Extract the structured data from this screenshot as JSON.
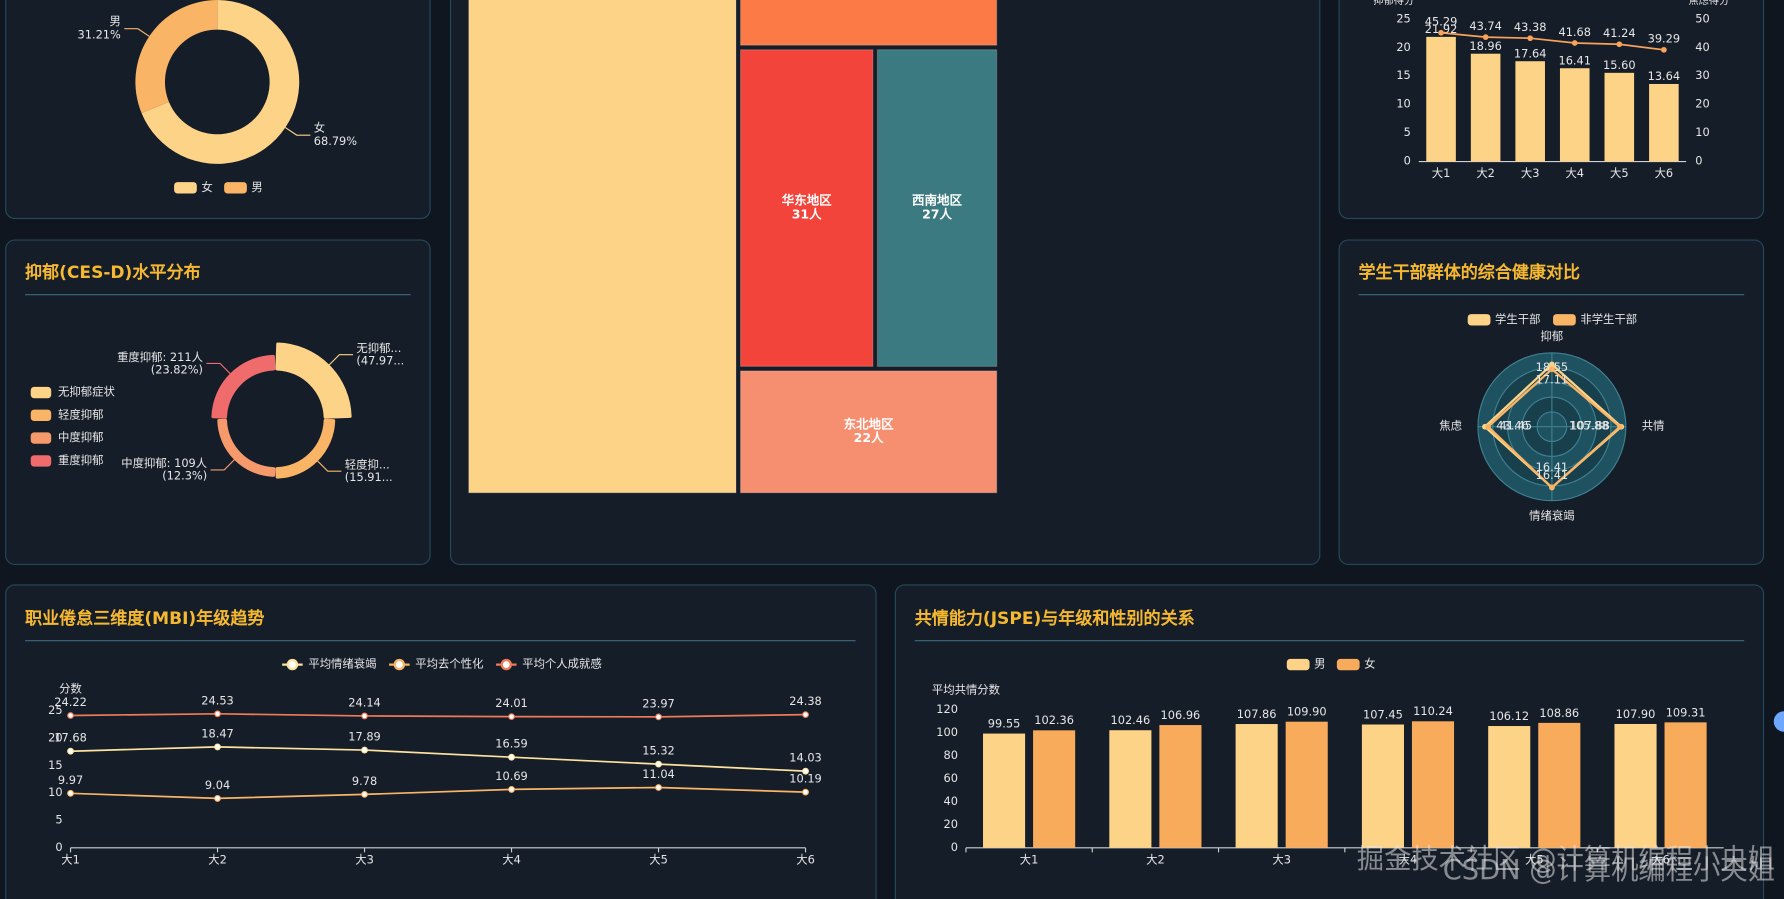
{
  "chart_data": [
    {
      "type": "pie",
      "categories": [
        "女",
        "男"
      ],
      "values": [
        68.79,
        31.21
      ],
      "value_labels": [
        "68.79%",
        "31.21%"
      ],
      "colors": [
        "#fdd387",
        "#f9b466"
      ]
    },
    {
      "type": "rose",
      "title": "抑郁(CES-D)水平分布",
      "categories": [
        "无抑郁症状",
        "轻度抑郁",
        "中度抑郁",
        "重度抑郁"
      ],
      "values": [
        47.97,
        15.91,
        12.3,
        23.82
      ],
      "labels": [
        "无抑郁...",
        "轻度抑...",
        "中度抑郁: 109人",
        "重度抑郁: 211人"
      ],
      "value_labels": [
        "(47.97...",
        "(15.91...",
        "(12.3%)",
        "(23.82%)"
      ],
      "colors": [
        "#fdd387",
        "#f9b466",
        "#f79a6b",
        "#f06b6b"
      ]
    },
    {
      "type": "treemap",
      "categories": [
        null,
        null,
        "华东地区",
        "西南地区",
        "东北地区"
      ],
      "values": [
        123,
        40,
        31,
        27,
        22
      ],
      "value_labels": [
        null,
        null,
        "31人",
        "27人",
        "22人"
      ],
      "colors": [
        "#fdd387",
        "#fb7a45",
        "#f2443a",
        "#3b7a80",
        "#f68e70"
      ]
    },
    {
      "type": "bar-line",
      "categories": [
        "大1",
        "大2",
        "大3",
        "大4",
        "大5",
        "大6"
      ],
      "ylabel": "抑郁得分",
      "y2label": "焦虑得分",
      "ylim": [
        0,
        25
      ],
      "yticks": [
        0,
        5,
        10,
        15,
        20,
        25
      ],
      "y2lim": [
        0,
        50
      ],
      "y2ticks": [
        0,
        10,
        20,
        30,
        40,
        50
      ],
      "series": [
        {
          "name": "抑郁得分",
          "color": "#fdd387",
          "values": [
            21.92,
            18.96,
            17.64,
            16.41,
            15.6,
            13.64
          ],
          "value_labels": [
            "21.92",
            "18.96",
            "17.64",
            "16.41",
            "15.60",
            "13.64"
          ]
        },
        {
          "name": "焦虑得分",
          "color": "#f9a35a",
          "axis": "y2",
          "values": [
            45.29,
            43.74,
            43.38,
            41.68,
            41.24,
            39.29
          ]
        }
      ]
    },
    {
      "type": "radar",
      "title": "学生干部群体的综合健康对比",
      "indicators": [
        {
          "name": "抑郁",
          "max": 22
        },
        {
          "name": "共情",
          "max": 115
        },
        {
          "name": "情绪衰竭",
          "max": 20
        },
        {
          "name": "焦虑",
          "max": 48
        }
      ],
      "series": [
        {
          "name": "学生干部",
          "color": "#fdd387",
          "values": [
            18.55,
            107.88,
            16.41,
            43.46
          ]
        },
        {
          "name": "非学生干部",
          "color": "#f9b466",
          "values": [
            17.11,
            105.88,
            16.41,
            41.45
          ]
        }
      ]
    },
    {
      "type": "line",
      "title": "职业倦怠三维度(MBI)年级趋势",
      "categories": [
        "大1",
        "大2",
        "大3",
        "大4",
        "大5",
        "大6"
      ],
      "ylabel": "分数",
      "ylim": [
        0,
        25
      ],
      "yticks": [
        0,
        5,
        10,
        15,
        20,
        25
      ],
      "series": [
        {
          "name": "平均情绪衰竭",
          "color": "#fde3a0",
          "values": [
            17.68,
            18.47,
            17.89,
            16.59,
            15.32,
            14.03
          ]
        },
        {
          "name": "平均去个性化",
          "color": "#f9b466",
          "values": [
            9.97,
            9.04,
            9.78,
            10.69,
            11.04,
            10.19
          ]
        },
        {
          "name": "平均个人成就感",
          "color": "#f07a55",
          "values": [
            24.22,
            24.53,
            24.14,
            24.01,
            23.97,
            24.38
          ]
        }
      ]
    },
    {
      "type": "bar",
      "title": "共情能力(JSPE)与年级和性别的关系",
      "categories": [
        "大1",
        "大2",
        "大3",
        "大4",
        "大5",
        "大6"
      ],
      "ylabel": "平均共情分数",
      "ylim": [
        0,
        120
      ],
      "yticks": [
        0,
        20,
        40,
        60,
        80,
        100,
        120
      ],
      "series": [
        {
          "name": "男",
          "color": "#fdd387",
          "values": [
            99.55,
            102.46,
            107.86,
            107.45,
            106.12,
            107.9
          ],
          "value_labels": [
            "99.55",
            "102.46",
            "107.86",
            "107.45",
            "106.12",
            "107.90"
          ]
        },
        {
          "name": "女",
          "color": "#f9ab5c",
          "values": [
            102.36,
            106.96,
            109.9,
            110.24,
            108.86,
            109.31
          ],
          "value_labels": [
            "102.36",
            "106.96",
            "109.90",
            "110.24",
            "108.86",
            "109.31"
          ]
        }
      ]
    }
  ],
  "watermark": [
    "掘金技术社区 @计算机编程小央姐",
    "CSDN @计算机编程小央姐"
  ]
}
